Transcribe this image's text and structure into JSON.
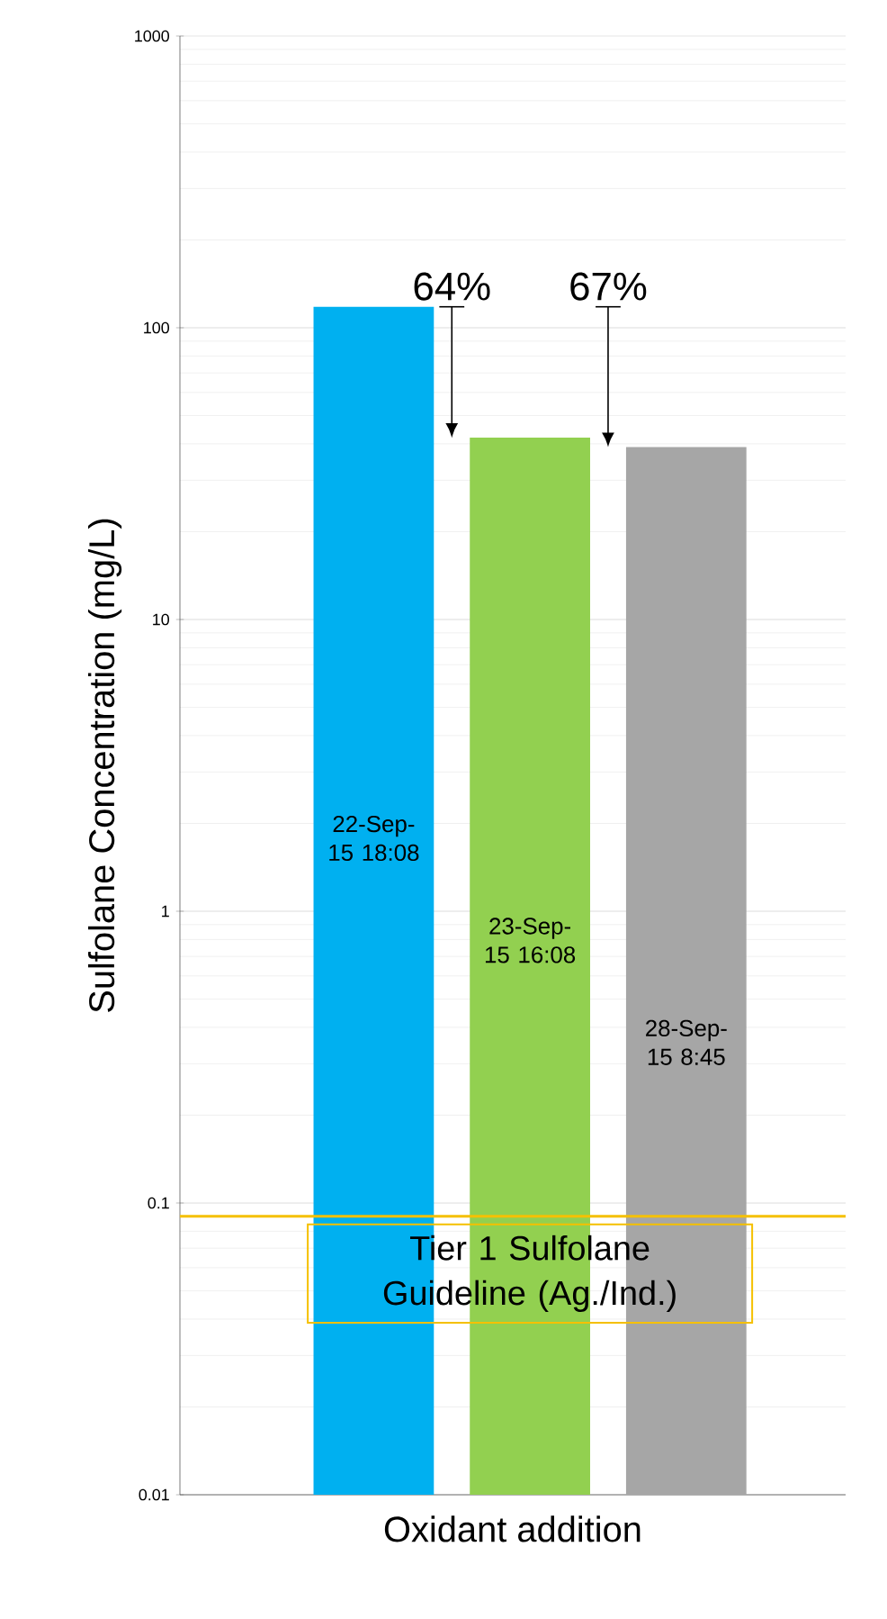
{
  "chart_data": {
    "type": "bar",
    "ylabel": "Sulfolane Concentration (mg/L)",
    "xlabel": "Oxidant addition",
    "categories": [
      "22-Sep-15 18:08",
      "23-Sep-15 16:08",
      "28-Sep-15 8:45"
    ],
    "values": [
      118,
      42,
      39
    ],
    "colors": [
      "#00b0f0",
      "#92d050",
      "#a6a6a6"
    ],
    "log": "y",
    "ylim": [
      0.01,
      1000
    ],
    "yticks": [
      0.01,
      0.1,
      1,
      10,
      100,
      1000
    ],
    "grid": "y",
    "ref_lines": [
      {
        "axis": "y",
        "value": 0.09,
        "label": "Tier 1 Sulfolane Guideline  (Ag./Ind.)",
        "color": "#f5c000"
      }
    ],
    "annotations": [
      "64%",
      "67%"
    ]
  }
}
